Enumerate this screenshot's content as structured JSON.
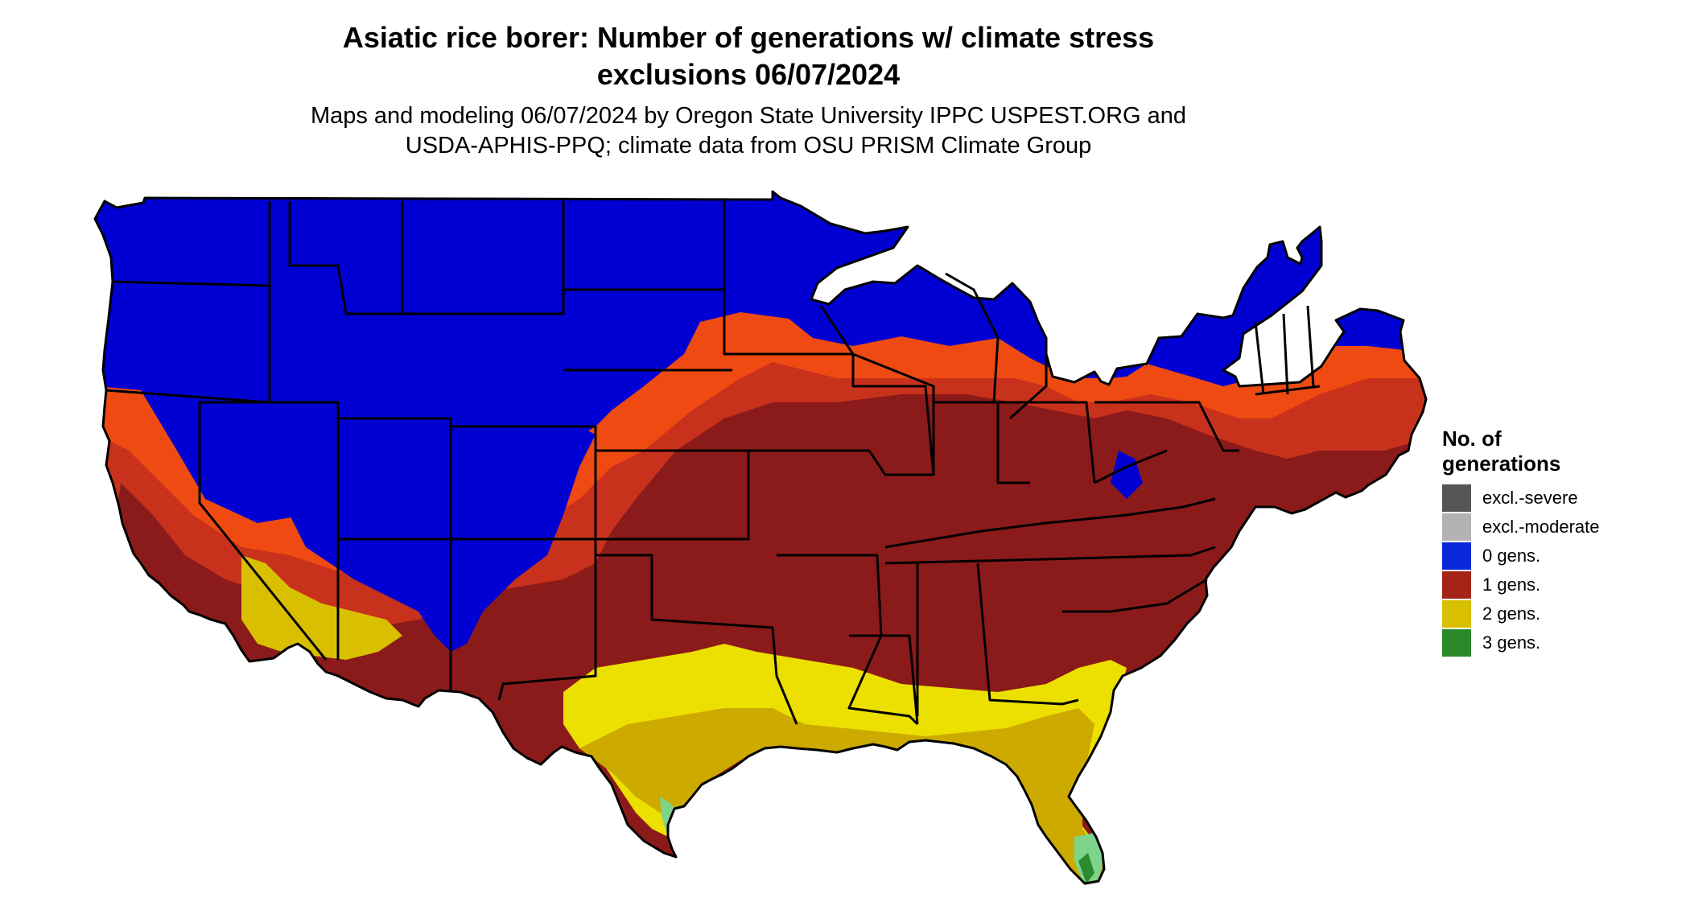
{
  "title_line1": "Asiatic rice borer: Number of generations w/ climate stress",
  "title_line2": "exclusions 06/07/2024",
  "subtitle_line1": "Maps and modeling 06/07/2024 by Oregon State University IPPC USPEST.ORG and",
  "subtitle_line2": "USDA-APHIS-PPQ; climate data from OSU PRISM Climate Group",
  "legend": {
    "title_line1": "No. of",
    "title_line2": "generations",
    "items": [
      {
        "label": "excl.-severe",
        "color": "#555555"
      },
      {
        "label": "excl.-moderate",
        "color": "#b3b3b3"
      },
      {
        "label": "0 gens.",
        "color": "#0a28d8"
      },
      {
        "label": "1 gens.",
        "color": "#a42517"
      },
      {
        "label": "2 gens.",
        "color": "#d8c000"
      },
      {
        "label": "3 gens.",
        "color": "#2a8a2a"
      }
    ]
  },
  "map_colors": {
    "zero_gens": "#0000d2",
    "one_gen_light": "#ee4a12",
    "one_gen_mid": "#c8321c",
    "one_gen_dark": "#8b1a1a",
    "two_gens_bright": "#ece000",
    "two_gens_dark": "#ccaa00",
    "three_gens": "#7ed48a",
    "three_gens_dark": "#2e8a2e",
    "border": "#000000"
  }
}
